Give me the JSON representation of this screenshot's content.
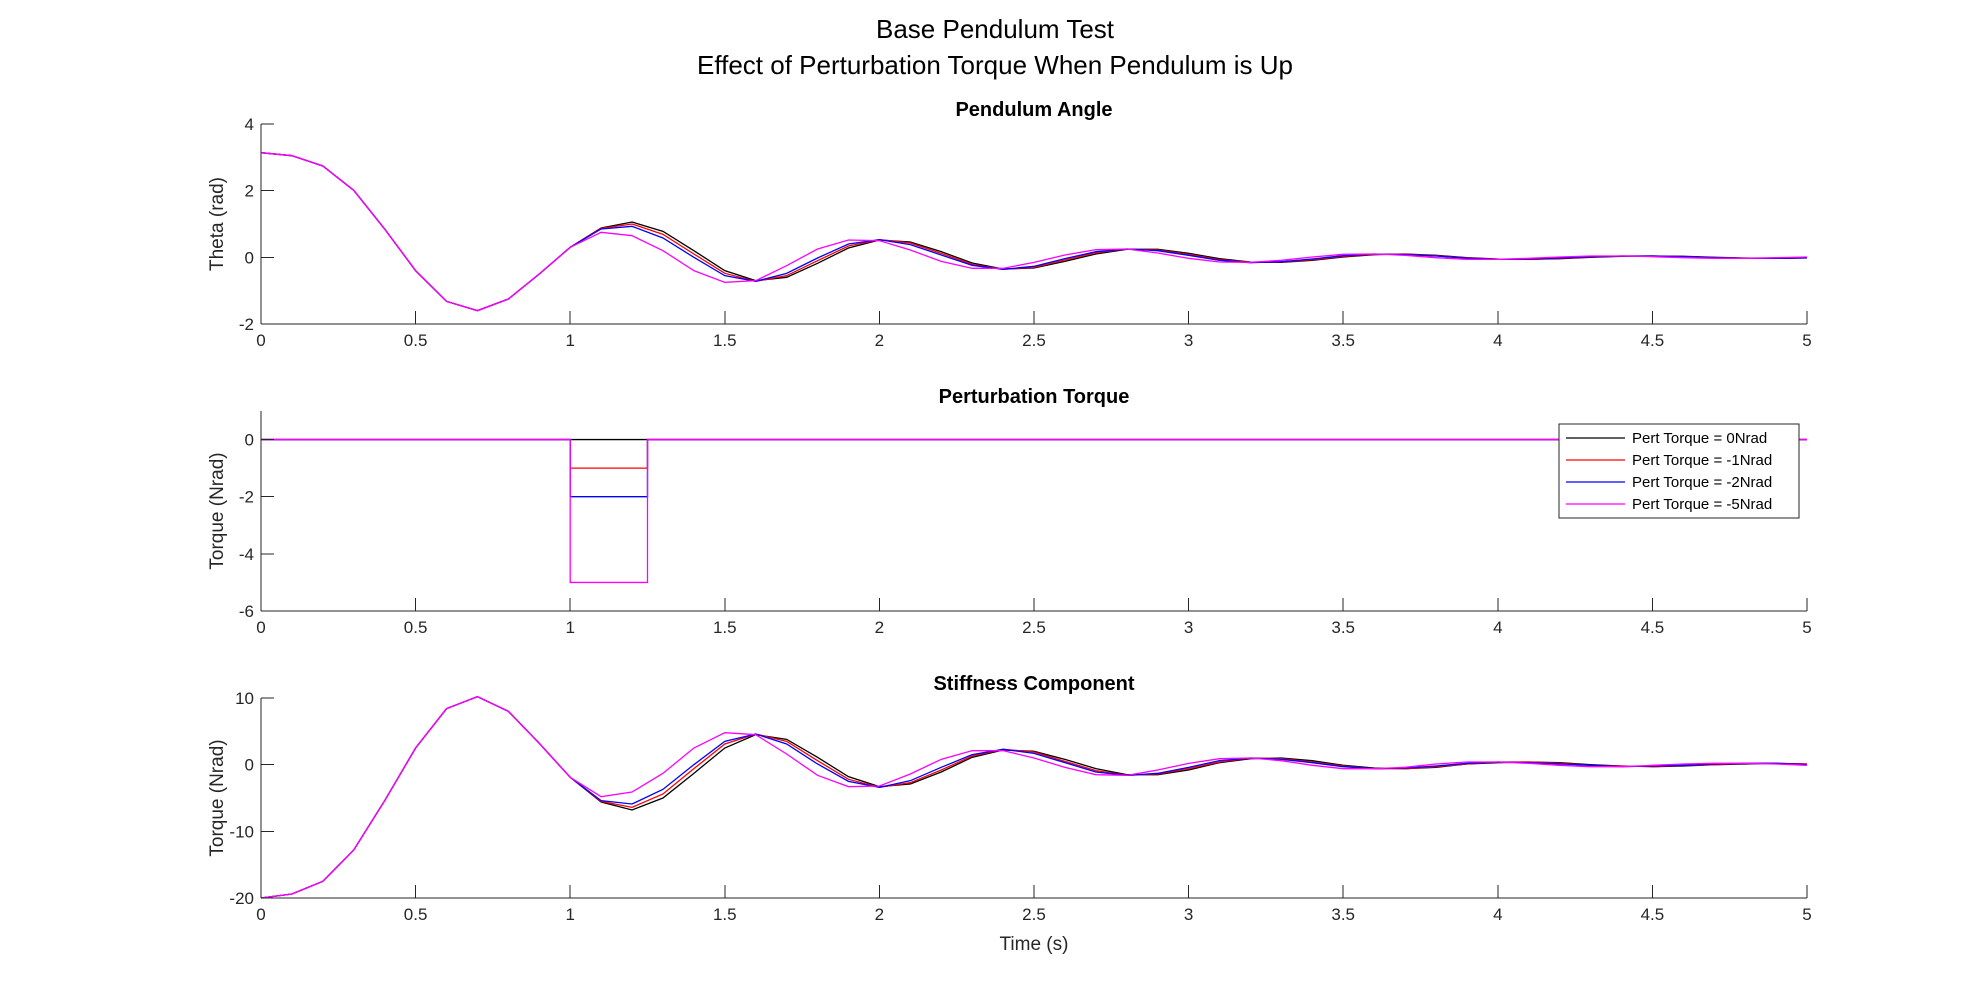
{
  "figure": {
    "title_line1": "Base Pendulum Test",
    "title_line2": "Effect of Perturbation Torque When Pendulum is Up"
  },
  "chart_data": [
    {
      "type": "line",
      "title": "Pendulum Angle",
      "xlabel": "",
      "ylabel": "Theta (rad)",
      "xlim": [
        0,
        5
      ],
      "ylim": [
        -2,
        4
      ],
      "xticks": [
        0,
        0.5,
        1,
        1.5,
        2,
        2.5,
        3,
        3.5,
        4,
        4.5,
        5
      ],
      "yticks": [
        -2,
        0,
        2,
        4
      ],
      "grid": false,
      "legend": null,
      "series": [
        {
          "color": "#000000",
          "x": [
            0,
            0.1,
            0.2,
            0.3,
            0.4,
            0.5,
            0.6,
            0.7,
            0.8,
            0.9,
            1.0,
            1.1,
            1.2,
            1.3,
            1.4,
            1.5,
            1.6,
            1.7,
            1.8,
            1.9,
            2.0,
            2.1,
            2.2,
            2.3,
            2.4,
            2.5,
            2.6,
            2.7,
            2.8,
            2.9,
            3.0,
            3.1,
            3.2,
            3.3,
            3.4,
            3.5,
            3.6,
            3.7,
            3.8,
            3.9,
            4.0,
            4.1,
            4.2,
            4.3,
            4.4,
            4.5,
            4.6,
            4.7,
            4.8,
            4.9,
            5.0
          ],
          "y": [
            3.14,
            3.05,
            2.74,
            2.01,
            0.85,
            -0.4,
            -1.32,
            -1.6,
            -1.25,
            -0.5,
            0.3,
            0.88,
            1.06,
            0.78,
            0.2,
            -0.4,
            -0.7,
            -0.6,
            -0.18,
            0.28,
            0.52,
            0.46,
            0.17,
            -0.17,
            -0.35,
            -0.32,
            -0.12,
            0.1,
            0.24,
            0.24,
            0.12,
            -0.04,
            -0.14,
            -0.15,
            -0.09,
            0.01,
            0.08,
            0.1,
            0.06,
            -0.01,
            -0.05,
            -0.06,
            -0.04,
            0.0,
            0.03,
            0.04,
            0.03,
            0.0,
            -0.02,
            -0.03,
            -0.02
          ]
        },
        {
          "color": "#ff0000",
          "x": [
            0,
            0.1,
            0.2,
            0.3,
            0.4,
            0.5,
            0.6,
            0.7,
            0.8,
            0.9,
            1.0,
            1.1,
            1.2,
            1.3,
            1.4,
            1.5,
            1.6,
            1.7,
            1.8,
            1.9,
            2.0,
            2.1,
            2.2,
            2.3,
            2.4,
            2.5,
            2.6,
            2.7,
            2.8,
            2.9,
            3.0,
            3.1,
            3.2,
            3.3,
            3.4,
            3.5,
            3.6,
            3.7,
            3.8,
            3.9,
            4.0,
            4.1,
            4.2,
            4.3,
            4.4,
            4.5,
            4.6,
            4.7,
            4.8,
            4.9,
            5.0
          ],
          "y": [
            3.14,
            3.05,
            2.74,
            2.01,
            0.85,
            -0.4,
            -1.32,
            -1.6,
            -1.25,
            -0.5,
            0.3,
            0.87,
            1.0,
            0.69,
            0.1,
            -0.48,
            -0.72,
            -0.55,
            -0.1,
            0.34,
            0.53,
            0.43,
            0.12,
            -0.21,
            -0.36,
            -0.3,
            -0.08,
            0.14,
            0.25,
            0.22,
            0.09,
            -0.07,
            -0.15,
            -0.14,
            -0.07,
            0.03,
            0.09,
            0.09,
            0.05,
            -0.02,
            -0.06,
            -0.06,
            -0.03,
            0.01,
            0.04,
            0.04,
            0.02,
            -0.01,
            -0.03,
            -0.03,
            -0.01
          ]
        },
        {
          "color": "#0000ff",
          "x": [
            0,
            0.1,
            0.2,
            0.3,
            0.4,
            0.5,
            0.6,
            0.7,
            0.8,
            0.9,
            1.0,
            1.1,
            1.2,
            1.3,
            1.4,
            1.5,
            1.6,
            1.7,
            1.8,
            1.9,
            2.0,
            2.1,
            2.2,
            2.3,
            2.4,
            2.5,
            2.6,
            2.7,
            2.8,
            2.9,
            3.0,
            3.1,
            3.2,
            3.3,
            3.4,
            3.5,
            3.6,
            3.7,
            3.8,
            3.9,
            4.0,
            4.1,
            4.2,
            4.3,
            4.4,
            4.5,
            4.6,
            4.7,
            4.8,
            4.9,
            5.0
          ],
          "y": [
            3.14,
            3.05,
            2.74,
            2.01,
            0.85,
            -0.4,
            -1.32,
            -1.6,
            -1.25,
            -0.5,
            0.3,
            0.85,
            0.93,
            0.58,
            0.0,
            -0.55,
            -0.72,
            -0.48,
            -0.02,
            0.4,
            0.53,
            0.38,
            0.07,
            -0.24,
            -0.36,
            -0.27,
            -0.04,
            0.17,
            0.25,
            0.2,
            0.06,
            -0.09,
            -0.16,
            -0.13,
            -0.05,
            0.05,
            0.1,
            0.08,
            0.04,
            -0.03,
            -0.06,
            -0.05,
            -0.02,
            0.02,
            0.04,
            0.04,
            0.02,
            -0.01,
            -0.03,
            -0.03,
            -0.01
          ]
        },
        {
          "color": "#ff00ff",
          "x": [
            0,
            0.1,
            0.2,
            0.3,
            0.4,
            0.5,
            0.6,
            0.7,
            0.8,
            0.9,
            1.0,
            1.1,
            1.2,
            1.3,
            1.4,
            1.5,
            1.6,
            1.7,
            1.8,
            1.9,
            2.0,
            2.1,
            2.2,
            2.3,
            2.4,
            2.5,
            2.6,
            2.7,
            2.8,
            2.9,
            3.0,
            3.1,
            3.2,
            3.3,
            3.4,
            3.5,
            3.6,
            3.7,
            3.8,
            3.9,
            4.0,
            4.1,
            4.2,
            4.3,
            4.4,
            4.5,
            4.6,
            4.7,
            4.8,
            4.9,
            5.0
          ],
          "y": [
            3.14,
            3.05,
            2.74,
            2.01,
            0.85,
            -0.4,
            -1.32,
            -1.6,
            -1.25,
            -0.5,
            0.3,
            0.75,
            0.65,
            0.2,
            -0.4,
            -0.75,
            -0.7,
            -0.25,
            0.25,
            0.52,
            0.5,
            0.22,
            -0.12,
            -0.33,
            -0.33,
            -0.15,
            0.07,
            0.23,
            0.25,
            0.13,
            -0.03,
            -0.14,
            -0.15,
            -0.09,
            0.01,
            0.09,
            0.1,
            0.06,
            -0.01,
            -0.06,
            -0.06,
            -0.03,
            0.01,
            0.04,
            0.04,
            0.02,
            -0.01,
            -0.03,
            -0.03,
            -0.01,
            0.01
          ]
        }
      ]
    },
    {
      "type": "line",
      "title": "Perturbation Torque",
      "xlabel": "",
      "ylabel": "Torque (Nrad)",
      "xlim": [
        0,
        5
      ],
      "ylim": [
        -6,
        1
      ],
      "xticks": [
        0,
        0.5,
        1,
        1.5,
        2,
        2.5,
        3,
        3.5,
        4,
        4.5,
        5
      ],
      "yticks": [
        -6,
        -4,
        -2,
        0
      ],
      "grid": false,
      "legend": "top-right",
      "series": [
        {
          "name": "Pert Torque = 0Nrad",
          "color": "#000000",
          "x": [
            0,
            1,
            1,
            1.25,
            1.25,
            5
          ],
          "y": [
            0,
            0,
            0,
            0,
            0,
            0
          ]
        },
        {
          "name": "Pert Torque = -1Nrad",
          "color": "#ff0000",
          "x": [
            0,
            1,
            1,
            1.25,
            1.25,
            5
          ],
          "y": [
            0,
            0,
            -1,
            -1,
            0,
            0
          ]
        },
        {
          "name": "Pert Torque = -2Nrad",
          "color": "#0000ff",
          "x": [
            0,
            1,
            1,
            1.25,
            1.25,
            5
          ],
          "y": [
            0,
            0,
            -2,
            -2,
            0,
            0
          ]
        },
        {
          "name": "Pert Torque = -5Nrad",
          "color": "#ff00ff",
          "x": [
            0,
            1,
            1,
            1.25,
            1.25,
            5
          ],
          "y": [
            0,
            0,
            -5,
            -5,
            0,
            0
          ]
        }
      ]
    },
    {
      "type": "line",
      "title": "Stiffness Component",
      "xlabel": "Time (s)",
      "ylabel": "Torque (Nrad)",
      "xlim": [
        0,
        5
      ],
      "ylim": [
        -20,
        10
      ],
      "xticks": [
        0,
        0.5,
        1,
        1.5,
        2,
        2.5,
        3,
        3.5,
        4,
        4.5,
        5
      ],
      "yticks": [
        -20,
        -10,
        0,
        10
      ],
      "grid": false,
      "legend": null,
      "series": [
        {
          "color": "#000000",
          "x": [
            0,
            0.1,
            0.2,
            0.3,
            0.4,
            0.5,
            0.6,
            0.7,
            0.8,
            0.9,
            1.0,
            1.1,
            1.2,
            1.3,
            1.4,
            1.5,
            1.6,
            1.7,
            1.8,
            1.9,
            2.0,
            2.1,
            2.2,
            2.3,
            2.4,
            2.5,
            2.6,
            2.7,
            2.8,
            2.9,
            3.0,
            3.1,
            3.2,
            3.3,
            3.4,
            3.5,
            3.6,
            3.7,
            3.8,
            3.9,
            4.0,
            4.1,
            4.2,
            4.3,
            4.4,
            4.5,
            4.6,
            4.7,
            4.8,
            4.9,
            5.0
          ],
          "y": [
            -20,
            -19.4,
            -17.5,
            -12.8,
            -5.4,
            2.5,
            8.4,
            10.2,
            8.0,
            3.2,
            -1.9,
            -5.6,
            -6.8,
            -5.0,
            -1.3,
            2.5,
            4.5,
            3.8,
            1.1,
            -1.8,
            -3.3,
            -2.9,
            -1.1,
            1.1,
            2.2,
            2.0,
            0.8,
            -0.6,
            -1.5,
            -1.5,
            -0.8,
            0.3,
            0.9,
            1.0,
            0.6,
            -0.1,
            -0.5,
            -0.6,
            -0.4,
            0.1,
            0.3,
            0.4,
            0.3,
            0.0,
            -0.2,
            -0.3,
            -0.2,
            0.0,
            0.1,
            0.2,
            0.1
          ]
        },
        {
          "color": "#ff0000",
          "x": [
            0,
            0.1,
            0.2,
            0.3,
            0.4,
            0.5,
            0.6,
            0.7,
            0.8,
            0.9,
            1.0,
            1.1,
            1.2,
            1.3,
            1.4,
            1.5,
            1.6,
            1.7,
            1.8,
            1.9,
            2.0,
            2.1,
            2.2,
            2.3,
            2.4,
            2.5,
            2.6,
            2.7,
            2.8,
            2.9,
            3.0,
            3.1,
            3.2,
            3.3,
            3.4,
            3.5,
            3.6,
            3.7,
            3.8,
            3.9,
            4.0,
            4.1,
            4.2,
            4.3,
            4.4,
            4.5,
            4.6,
            4.7,
            4.8,
            4.9,
            5.0
          ],
          "y": [
            -20,
            -19.4,
            -17.5,
            -12.8,
            -5.4,
            2.5,
            8.4,
            10.2,
            8.0,
            3.2,
            -1.9,
            -5.5,
            -6.4,
            -4.4,
            -0.6,
            3.1,
            4.6,
            3.5,
            0.6,
            -2.2,
            -3.4,
            -2.7,
            -0.8,
            1.3,
            2.3,
            1.9,
            0.5,
            -0.9,
            -1.6,
            -1.4,
            -0.6,
            0.4,
            1.0,
            0.9,
            0.4,
            -0.2,
            -0.6,
            -0.6,
            -0.3,
            0.1,
            0.4,
            0.4,
            0.2,
            -0.1,
            -0.2,
            -0.3,
            -0.1,
            0.0,
            0.2,
            0.2,
            0.1
          ]
        },
        {
          "color": "#0000ff",
          "x": [
            0,
            0.1,
            0.2,
            0.3,
            0.4,
            0.5,
            0.6,
            0.7,
            0.8,
            0.9,
            1.0,
            1.1,
            1.2,
            1.3,
            1.4,
            1.5,
            1.6,
            1.7,
            1.8,
            1.9,
            2.0,
            2.1,
            2.2,
            2.3,
            2.4,
            2.5,
            2.6,
            2.7,
            2.8,
            2.9,
            3.0,
            3.1,
            3.2,
            3.3,
            3.4,
            3.5,
            3.6,
            3.7,
            3.8,
            3.9,
            4.0,
            4.1,
            4.2,
            4.3,
            4.4,
            4.5,
            4.6,
            4.7,
            4.8,
            4.9,
            5.0
          ],
          "y": [
            -20,
            -19.4,
            -17.5,
            -12.8,
            -5.4,
            2.5,
            8.4,
            10.2,
            8.0,
            3.2,
            -1.9,
            -5.4,
            -5.9,
            -3.7,
            0.0,
            3.5,
            4.6,
            3.1,
            0.1,
            -2.5,
            -3.4,
            -2.4,
            -0.4,
            1.5,
            2.3,
            1.7,
            0.3,
            -1.1,
            -1.6,
            -1.3,
            -0.4,
            0.6,
            1.0,
            0.8,
            0.3,
            -0.3,
            -0.6,
            -0.5,
            -0.2,
            0.2,
            0.4,
            0.3,
            0.1,
            -0.1,
            -0.3,
            -0.2,
            -0.1,
            0.1,
            0.2,
            0.2,
            0.0
          ]
        },
        {
          "color": "#ff00ff",
          "x": [
            0,
            0.1,
            0.2,
            0.3,
            0.4,
            0.5,
            0.6,
            0.7,
            0.8,
            0.9,
            1.0,
            1.1,
            1.2,
            1.3,
            1.4,
            1.5,
            1.6,
            1.7,
            1.8,
            1.9,
            2.0,
            2.1,
            2.2,
            2.3,
            2.4,
            2.5,
            2.6,
            2.7,
            2.8,
            2.9,
            3.0,
            3.1,
            3.2,
            3.3,
            3.4,
            3.5,
            3.6,
            3.7,
            3.8,
            3.9,
            4.0,
            4.1,
            4.2,
            4.3,
            4.4,
            4.5,
            4.6,
            4.7,
            4.8,
            4.9,
            5.0
          ],
          "y": [
            -20,
            -19.4,
            -17.5,
            -12.8,
            -5.4,
            2.5,
            8.4,
            10.2,
            8.0,
            3.2,
            -1.9,
            -4.8,
            -4.1,
            -1.3,
            2.5,
            4.8,
            4.5,
            1.6,
            -1.6,
            -3.3,
            -3.2,
            -1.4,
            0.8,
            2.1,
            2.1,
            1.0,
            -0.4,
            -1.5,
            -1.6,
            -0.8,
            0.2,
            0.9,
            1.0,
            0.6,
            -0.1,
            -0.6,
            -0.6,
            -0.4,
            0.1,
            0.4,
            0.4,
            0.2,
            -0.1,
            -0.3,
            -0.3,
            -0.1,
            0.1,
            0.2,
            0.2,
            0.1,
            -0.1
          ]
        }
      ]
    }
  ]
}
